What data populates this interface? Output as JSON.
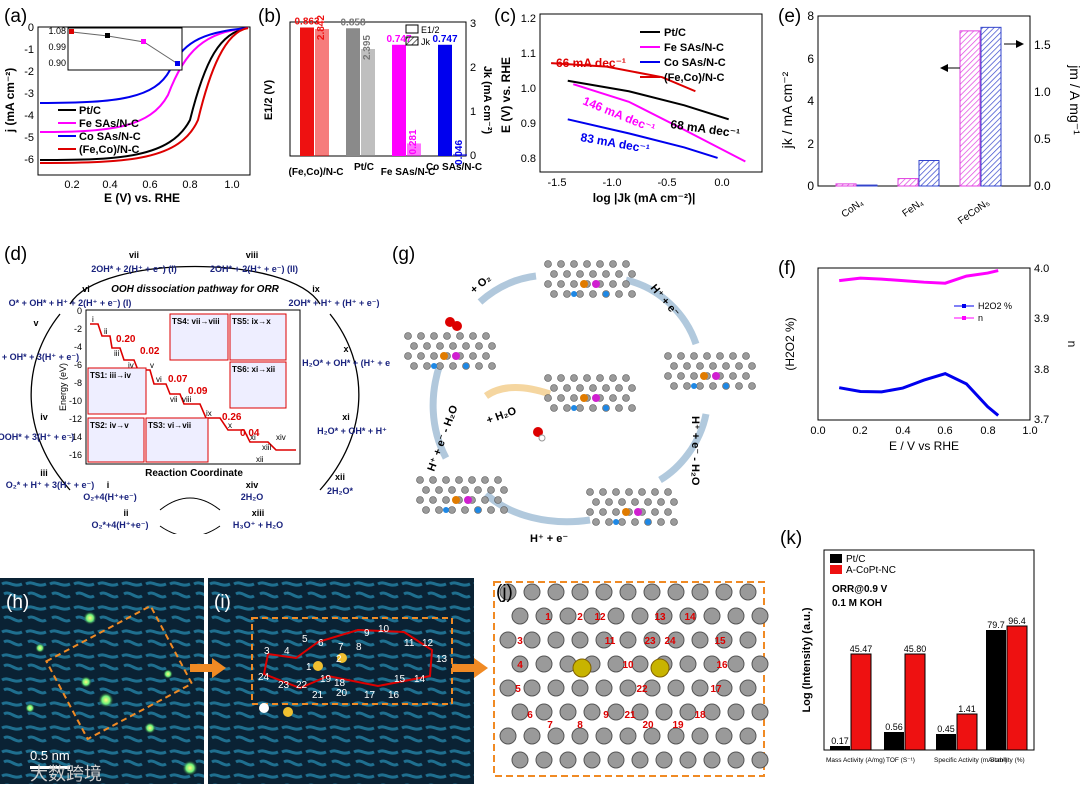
{
  "figure": {
    "labels": [
      "(a)",
      "(b)",
      "(c)",
      "(d)",
      "(e)",
      "(f)",
      "(g)",
      "(h)",
      "(i)",
      "(j)",
      "(k)"
    ],
    "watermark": "大数跨境"
  },
  "panel_a": {
    "ylabel": "j (mA cm⁻²)",
    "xlabel": "E (V) vs. RHE",
    "xticks": [
      "0.2",
      "0.4",
      "0.6",
      "0.8",
      "1.0"
    ],
    "yticks": [
      "0",
      "-1",
      "-2",
      "-3",
      "-4",
      "-5",
      "-6"
    ],
    "legend": [
      "Pt/C",
      "Fe SAs/N-C",
      "Co SAs/N-C",
      "(Fe,Co)/N-C"
    ],
    "inset_yticks": [
      "1.08",
      "0.99",
      "0.90"
    ],
    "colors": [
      "#000000",
      "#ff00ff",
      "#0000ee",
      "#dd0000"
    ]
  },
  "chart_data": [
    {
      "type": "bar",
      "panel": "b",
      "categories": [
        "(Fe,Co)/N-C",
        "Pt/C",
        "Fe SAs/N-C",
        "Co SAs/N-C"
      ],
      "series": [
        {
          "name": "E1/2",
          "values": [
            0.863,
            0.858,
            0.747,
            0.747
          ],
          "labels": [
            "0.863",
            "0.858",
            "0.747",
            "0.747"
          ]
        },
        {
          "name": "Jk",
          "values": [
            2.842,
            2.395,
            0.281,
            0.046
          ],
          "labels": [
            "2.842",
            "2.395",
            "0.281",
            "0.046"
          ]
        }
      ],
      "ylabel_left": "E1/2 (V)",
      "ylabel_right": "Jk (mA cm⁻²)",
      "yticks_right": [
        "0",
        "1",
        "2",
        "3"
      ],
      "legend": [
        "E1/2",
        "Jk"
      ],
      "ylim_right": [
        0,
        3
      ]
    },
    {
      "type": "line",
      "panel": "c",
      "ylabel": "E (V) vs. RHE",
      "xlabel": "log |Jk (mA cm⁻²)|",
      "xticks": [
        "-1.5",
        "-1.0",
        "-0.5",
        "0.0"
      ],
      "yticks": [
        "1.2",
        "1.1",
        "1.0",
        "0.9",
        "0.8"
      ],
      "legend": [
        "Pt/C",
        "Fe SAs/N-C",
        "Co SAs/N-C",
        "(Fe,Co)/N-C"
      ],
      "annotations": [
        "66 mA dec⁻¹",
        "68 mA dec⁻¹",
        "146 mA dec⁻¹",
        "83 mA dec⁻¹"
      ],
      "xlim": [
        -1.6,
        0.4
      ],
      "ylim": [
        0.75,
        1.2
      ],
      "series": [
        {
          "name": "Pt/C",
          "x": [
            -1.35,
            -0.8,
            -0.3,
            0.1
          ],
          "y": [
            1.01,
            0.98,
            0.94,
            0.9
          ]
        },
        {
          "name": "Fe SAs/N-C",
          "x": [
            -1.3,
            -0.8,
            -0.3,
            0.25
          ],
          "y": [
            1.0,
            0.95,
            0.87,
            0.78
          ]
        },
        {
          "name": "Co SAs/N-C",
          "x": [
            -1.35,
            -0.8,
            -0.3,
            0.0
          ],
          "y": [
            0.9,
            0.86,
            0.82,
            0.79
          ]
        },
        {
          "name": "(Fe,Co)/N-C",
          "x": [
            -1.5,
            -1.0,
            -0.5,
            -0.2
          ],
          "y": [
            1.06,
            1.05,
            1.02,
            0.98
          ]
        }
      ]
    },
    {
      "type": "bar",
      "panel": "e",
      "categories": [
        "CoN₄",
        "FeN₄",
        "FeCoN₅"
      ],
      "series": [
        {
          "name": "jk",
          "values": [
            0.1,
            0.35,
            7.3
          ]
        },
        {
          "name": "jm",
          "values": [
            0.01,
            0.27,
            1.68
          ]
        }
      ],
      "ylabel_left": "jk / mA cm⁻²",
      "ylabel_right": "jm / A mg⁻¹",
      "yticks_left": [
        "0",
        "2",
        "4",
        "6",
        "8"
      ],
      "yticks_right": [
        "0.0",
        "0.5",
        "1.0",
        "1.5"
      ],
      "ylim_left": [
        0,
        8
      ],
      "ylim_right": [
        0,
        1.8
      ]
    },
    {
      "type": "line",
      "panel": "f",
      "xlabel": "E / V vs RHE",
      "ylabel_left": "(H2O2 %)",
      "ylabel_right": "n",
      "xticks": [
        "0.0",
        "0.2",
        "0.4",
        "0.6",
        "0.8",
        "1.0"
      ],
      "yticks_right": [
        "3.7",
        "3.8",
        "3.9",
        "4.0"
      ],
      "legend": [
        "H2O2 %",
        "n"
      ],
      "series": [
        {
          "name": "H2O2 %",
          "x": [
            0.1,
            0.2,
            0.3,
            0.4,
            0.5,
            0.6,
            0.7,
            0.8,
            0.85
          ],
          "y": [
            0.85,
            0.75,
            0.74,
            0.84,
            1.05,
            1.22,
            0.95,
            0.35,
            0.12
          ]
        },
        {
          "name": "n",
          "x": [
            0.1,
            0.2,
            0.3,
            0.4,
            0.5,
            0.6,
            0.7,
            0.8,
            0.85
          ],
          "y": [
            3.975,
            3.98,
            3.978,
            3.975,
            3.972,
            3.97,
            3.984,
            3.99,
            3.995
          ]
        }
      ]
    },
    {
      "type": "bar",
      "panel": "k",
      "categories": [
        "Mass Activity (A/mg)",
        "TOF (S⁻¹)",
        "Specific Activity (mA/cm²)",
        "Stability (%)"
      ],
      "series": [
        {
          "name": "Pt/C",
          "values": [
            0.17,
            0.56,
            0.45,
            79.7
          ],
          "labels": [
            "0.17",
            "0.56",
            "0.45",
            "79.7"
          ]
        },
        {
          "name": "A-CoPt-NC",
          "values": [
            45.47,
            45.8,
            1.41,
            96.4
          ],
          "labels": [
            "45.47",
            "45.80",
            "1.41",
            "96.4"
          ]
        }
      ],
      "ylabel": "Log (Intensity) (a.u.)",
      "annotations": [
        "ORR@0.9 V",
        "0.1 M KOH"
      ]
    }
  ],
  "panel_d": {
    "title": "OOH dissociation pathway for ORR",
    "ylabel": "Energy (eV)",
    "xlabel": "Reaction Coordinate",
    "yticks": [
      "0",
      "-2",
      "-4",
      "-6",
      "-8",
      "-10",
      "-12",
      "-14",
      "-16"
    ],
    "barriers": [
      "0.20",
      "0.02",
      "0.07",
      "0.09",
      "0.26",
      "0.04"
    ],
    "states": [
      "i",
      "ii",
      "iii",
      "iv",
      "v",
      "vi",
      "vii",
      "viii",
      "ix",
      "x",
      "xi",
      "xii",
      "xiii",
      "xiv"
    ],
    "ts_labels": [
      "TS4: vii→viii",
      "TS5: ix→x",
      "TS1: iii→iv",
      "TS6: xi→xii",
      "TS2: iv→v",
      "TS3: vi→vii"
    ],
    "cycle": [
      {
        "num": "vii",
        "text": "2OH* + 2(H⁺ + e⁻) (I)"
      },
      {
        "num": "viii",
        "text": "2OH* + 2(H⁺ + e⁻) (II)"
      },
      {
        "num": "vi",
        "text": "O* + OH* + H⁺ + 2(H⁺ + e⁻) (I)"
      },
      {
        "num": "ix",
        "text": "2OH* + H⁺ + (H⁺ + e⁻)"
      },
      {
        "num": "v",
        "text": "O* + OH* + 3(H⁺ + e⁻)"
      },
      {
        "num": "x",
        "text": "H₂O* + OH* + (H⁺ + e⁻)"
      },
      {
        "num": "iv",
        "text": "OOH* + 3(H⁺ + e⁻)"
      },
      {
        "num": "xi",
        "text": "H₂O* + OH* + H⁺"
      },
      {
        "num": "iii",
        "text": "O₂* + H⁺ + 3(H⁺ + e⁻)"
      },
      {
        "num": "xii",
        "text": "2H₂O*"
      },
      {
        "num": "i",
        "text": "O₂+4(H⁺+e⁻)"
      },
      {
        "num": "xiv",
        "text": "2H₂O"
      },
      {
        "num": "ii",
        "text": "O₂*+4(H⁺+e⁻)"
      },
      {
        "num": "xiii",
        "text": "H₃O⁺ + H₂O"
      }
    ]
  },
  "panel_g": {
    "steps": [
      "+ O₂",
      "H⁺ + e⁻",
      "H⁺ + e⁻ - H₂O",
      "H⁺ + e⁻",
      "H⁺ + e⁻ - H₂O",
      "+ H₂O"
    ]
  },
  "panel_h": {
    "scale": "0.5 nm"
  },
  "panel_i": {
    "numbers": [
      "1",
      "2",
      "3",
      "4",
      "5",
      "6",
      "7",
      "8",
      "9",
      "10",
      "11",
      "12",
      "13",
      "14",
      "15",
      "16",
      "17",
      "18",
      "19",
      "20",
      "21",
      "22",
      "23",
      "24"
    ]
  },
  "panel_j": {
    "numbers": [
      "1",
      "2",
      "3",
      "4",
      "5",
      "6",
      "7",
      "8",
      "9",
      "10",
      "11",
      "12",
      "13",
      "14",
      "15",
      "16",
      "17",
      "18",
      "19",
      "20",
      "21",
      "22",
      "23",
      "24"
    ]
  }
}
